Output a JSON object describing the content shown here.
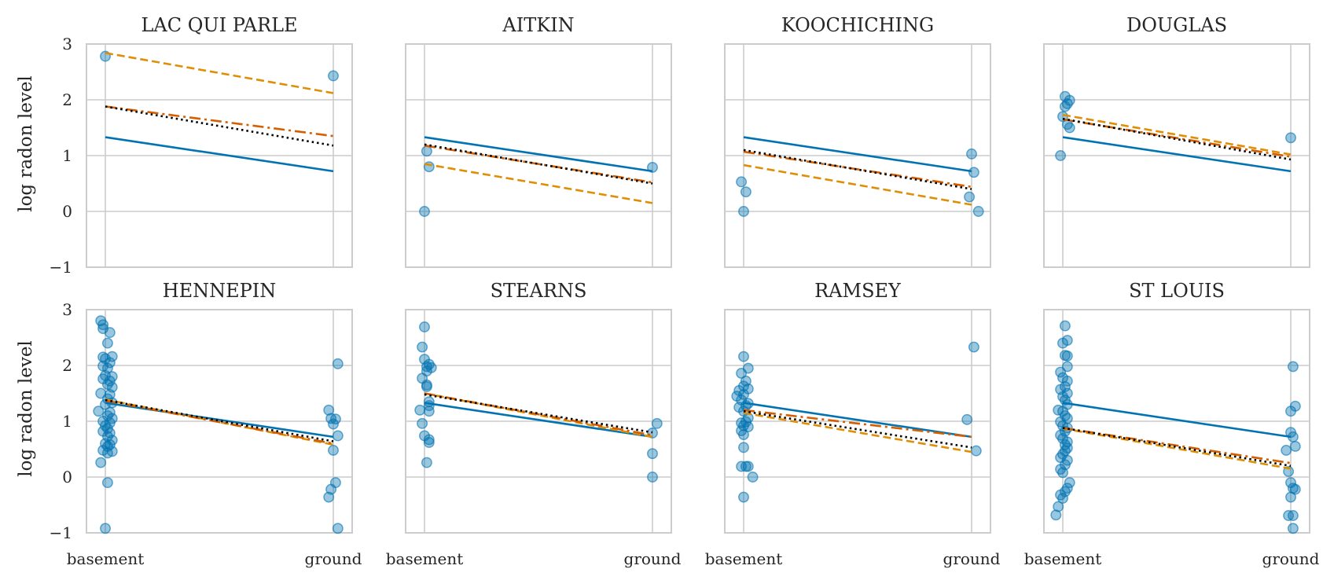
{
  "chart_data": {
    "type": "line",
    "ylabel": "log radon level",
    "ylim": [
      -1,
      3
    ],
    "yticks": [
      3,
      2,
      1,
      0,
      -1
    ],
    "ytick_labels": [
      "3",
      "2",
      "1",
      "0",
      "−1"
    ],
    "categories": [
      "basement",
      "ground"
    ],
    "grid": true,
    "colors": {
      "points": "#0173b2",
      "solid": "#0173b2",
      "dashed": "#de8f05",
      "dashdot": "#d55e00",
      "dotted": "#000000"
    },
    "panels": [
      {
        "title": "LAC QUI PARLE",
        "lines": {
          "solid": [
            1.33,
            0.72
          ],
          "dashed": [
            2.84,
            2.12
          ],
          "dashdot": [
            1.88,
            1.35
          ],
          "dotted": [
            1.88,
            1.18
          ]
        },
        "points": [
          [
            0,
            2.78
          ],
          [
            1,
            2.43
          ]
        ]
      },
      {
        "title": "AITKIN",
        "lines": {
          "solid": [
            1.33,
            0.72
          ],
          "dashed": [
            0.85,
            0.15
          ],
          "dashdot": [
            1.18,
            0.52
          ],
          "dotted": [
            1.2,
            0.5
          ]
        },
        "points": [
          [
            0,
            0.0
          ],
          [
            0.01,
            1.08
          ],
          [
            0.02,
            0.8
          ],
          [
            1,
            0.79
          ]
        ]
      },
      {
        "title": "KOOCHICHING",
        "lines": {
          "solid": [
            1.33,
            0.72
          ],
          "dashed": [
            0.83,
            0.12
          ],
          "dashdot": [
            1.07,
            0.44
          ],
          "dotted": [
            1.1,
            0.4
          ]
        },
        "points": [
          [
            -0.01,
            0.53
          ],
          [
            0.01,
            0.35
          ],
          [
            0.0,
            0.0
          ],
          [
            1.0,
            1.03
          ],
          [
            1.01,
            0.7
          ],
          [
            0.99,
            0.26
          ],
          [
            1.03,
            0.0
          ]
        ]
      },
      {
        "title": "DOUGLAS",
        "lines": {
          "solid": [
            1.33,
            0.72
          ],
          "dashed": [
            1.73,
            1.02
          ],
          "dashdot": [
            1.65,
            0.98
          ],
          "dotted": [
            1.66,
            0.93
          ]
        },
        "points": [
          [
            -0.01,
            1.0
          ],
          [
            0.0,
            1.7
          ],
          [
            0.01,
            2.06
          ],
          [
            0.02,
            1.93
          ],
          [
            0.03,
            1.99
          ],
          [
            0.01,
            1.88
          ],
          [
            0.02,
            1.56
          ],
          [
            0.03,
            1.5
          ],
          [
            1.0,
            1.32
          ]
        ]
      },
      {
        "title": "HENNEPIN",
        "lines": {
          "solid": [
            1.33,
            0.72
          ],
          "dashed": [
            1.39,
            0.58
          ],
          "dashdot": [
            1.37,
            0.6
          ],
          "dotted": [
            1.38,
            0.64
          ]
        },
        "points": [
          [
            -0.02,
            2.8
          ],
          [
            -0.01,
            2.73
          ],
          [
            -0.01,
            2.66
          ],
          [
            0.02,
            2.59
          ],
          [
            0.01,
            2.4
          ],
          [
            -0.01,
            2.15
          ],
          [
            0.0,
            2.12
          ],
          [
            0.03,
            2.16
          ],
          [
            0.02,
            2.05
          ],
          [
            -0.01,
            1.99
          ],
          [
            0.01,
            1.95
          ],
          [
            0.0,
            1.82
          ],
          [
            0.03,
            1.8
          ],
          [
            -0.01,
            1.76
          ],
          [
            0.02,
            1.72
          ],
          [
            0.01,
            1.66
          ],
          [
            0.03,
            1.61
          ],
          [
            -0.02,
            1.5
          ],
          [
            0.02,
            1.48
          ],
          [
            0.01,
            1.4
          ],
          [
            0.03,
            1.33
          ],
          [
            0.0,
            1.3
          ],
          [
            -0.03,
            1.18
          ],
          [
            0.02,
            1.16
          ],
          [
            0.01,
            1.1
          ],
          [
            0.03,
            1.05
          ],
          [
            -0.01,
            1.0
          ],
          [
            0.02,
            0.97
          ],
          [
            0.0,
            0.92
          ],
          [
            0.01,
            0.87
          ],
          [
            -0.01,
            0.82
          ],
          [
            0.02,
            0.79
          ],
          [
            0.01,
            0.73
          ],
          [
            0.03,
            0.66
          ],
          [
            0.0,
            0.6
          ],
          [
            0.02,
            0.58
          ],
          [
            0.01,
            0.55
          ],
          [
            -0.01,
            0.48
          ],
          [
            0.03,
            0.46
          ],
          [
            0.01,
            0.43
          ],
          [
            -0.02,
            0.26
          ],
          [
            0.01,
            -0.1
          ],
          [
            0.0,
            -0.92
          ],
          [
            0.98,
            1.2
          ],
          [
            1.02,
            2.03
          ],
          [
            0.99,
            1.05
          ],
          [
            1.01,
            1.04
          ],
          [
            1.0,
            0.95
          ],
          [
            1.02,
            0.74
          ],
          [
            1.0,
            0.48
          ],
          [
            1.01,
            -0.1
          ],
          [
            0.99,
            -0.22
          ],
          [
            0.98,
            -0.36
          ],
          [
            1.02,
            -0.92
          ]
        ]
      },
      {
        "title": "STEARNS",
        "lines": {
          "solid": [
            1.33,
            0.72
          ],
          "dashed": [
            1.5,
            0.72
          ],
          "dashdot": [
            1.5,
            0.75
          ],
          "dotted": [
            1.48,
            0.8
          ]
        },
        "points": [
          [
            0.0,
            2.69
          ],
          [
            -0.01,
            2.33
          ],
          [
            0.0,
            2.11
          ],
          [
            0.02,
            2.02
          ],
          [
            0.01,
            1.98
          ],
          [
            0.03,
            1.96
          ],
          [
            0.01,
            1.9
          ],
          [
            -0.01,
            1.77
          ],
          [
            0.01,
            1.65
          ],
          [
            0.01,
            1.62
          ],
          [
            0.02,
            1.35
          ],
          [
            0.02,
            1.28
          ],
          [
            -0.02,
            1.2
          ],
          [
            0.02,
            1.18
          ],
          [
            -0.01,
            0.96
          ],
          [
            0.0,
            0.74
          ],
          [
            0.02,
            0.67
          ],
          [
            0.02,
            0.62
          ],
          [
            0.01,
            0.26
          ],
          [
            1.02,
            0.96
          ],
          [
            1.0,
            0.79
          ],
          [
            1.0,
            0.42
          ],
          [
            1.0,
            0.0
          ]
        ]
      },
      {
        "title": "RAMSEY",
        "lines": {
          "solid": [
            1.33,
            0.72
          ],
          "dashed": [
            1.15,
            0.45
          ],
          "dashdot": [
            1.2,
            0.72
          ],
          "dotted": [
            1.18,
            0.53
          ]
        },
        "points": [
          [
            -0.03,
            1.45
          ],
          [
            0.0,
            2.16
          ],
          [
            0.02,
            1.95
          ],
          [
            -0.01,
            1.86
          ],
          [
            0.01,
            1.72
          ],
          [
            0.0,
            1.63
          ],
          [
            0.02,
            1.58
          ],
          [
            -0.02,
            1.55
          ],
          [
            0.0,
            1.48
          ],
          [
            -0.01,
            1.38
          ],
          [
            0.02,
            1.32
          ],
          [
            0.01,
            1.28
          ],
          [
            -0.02,
            1.25
          ],
          [
            0.0,
            1.18
          ],
          [
            0.02,
            1.06
          ],
          [
            0.01,
            0.99
          ],
          [
            -0.01,
            0.97
          ],
          [
            0.0,
            0.92
          ],
          [
            0.02,
            0.9
          ],
          [
            -0.01,
            0.83
          ],
          [
            0.0,
            0.76
          ],
          [
            0.0,
            0.53
          ],
          [
            -0.01,
            0.19
          ],
          [
            0.01,
            0.19
          ],
          [
            0.02,
            0.19
          ],
          [
            0.04,
            0.0
          ],
          [
            0.0,
            -0.36
          ],
          [
            0.98,
            1.03
          ],
          [
            1.01,
            2.33
          ],
          [
            1.02,
            0.47
          ]
        ]
      },
      {
        "title": "ST LOUIS",
        "lines": {
          "solid": [
            1.33,
            0.72
          ],
          "dashed": [
            0.87,
            0.15
          ],
          "dashdot": [
            0.88,
            0.25
          ],
          "dotted": [
            0.88,
            0.2
          ]
        },
        "points": [
          [
            0.01,
            2.71
          ],
          [
            0.02,
            2.45
          ],
          [
            0.0,
            2.4
          ],
          [
            0.01,
            2.18
          ],
          [
            0.02,
            2.17
          ],
          [
            0.02,
            1.98
          ],
          [
            -0.01,
            1.88
          ],
          [
            0.0,
            1.78
          ],
          [
            0.02,
            1.72
          ],
          [
            0.01,
            1.62
          ],
          [
            -0.01,
            1.57
          ],
          [
            0.02,
            1.5
          ],
          [
            0.0,
            1.44
          ],
          [
            0.01,
            1.38
          ],
          [
            0.02,
            1.3
          ],
          [
            -0.02,
            1.2
          ],
          [
            0.0,
            1.18
          ],
          [
            0.01,
            1.1
          ],
          [
            0.02,
            1.05
          ],
          [
            -0.01,
            0.99
          ],
          [
            0.0,
            0.92
          ],
          [
            0.02,
            0.88
          ],
          [
            0.01,
            0.82
          ],
          [
            -0.01,
            0.75
          ],
          [
            0.0,
            0.69
          ],
          [
            0.02,
            0.63
          ],
          [
            0.01,
            0.58
          ],
          [
            0.02,
            0.52
          ],
          [
            0.01,
            0.47
          ],
          [
            0.0,
            0.41
          ],
          [
            -0.01,
            0.35
          ],
          [
            0.02,
            0.3
          ],
          [
            0.01,
            0.22
          ],
          [
            -0.01,
            0.14
          ],
          [
            0.0,
            0.08
          ],
          [
            0.03,
            -0.1
          ],
          [
            0.02,
            -0.2
          ],
          [
            0.01,
            -0.26
          ],
          [
            -0.01,
            -0.32
          ],
          [
            0.0,
            -0.38
          ],
          [
            -0.02,
            -0.53
          ],
          [
            -0.03,
            -0.68
          ],
          [
            0.98,
            0.48
          ],
          [
            1.0,
            0.8
          ],
          [
            1.01,
            1.98
          ],
          [
            1.02,
            1.27
          ],
          [
            1.0,
            1.18
          ],
          [
            1.01,
            0.72
          ],
          [
            1.02,
            0.55
          ],
          [
            0.99,
            0.1
          ],
          [
            1.0,
            -0.1
          ],
          [
            1.01,
            -0.2
          ],
          [
            1.02,
            -0.22
          ],
          [
            1.0,
            -0.36
          ],
          [
            1.01,
            -0.69
          ],
          [
            0.99,
            -0.69
          ],
          [
            1.01,
            -0.92
          ]
        ]
      }
    ]
  }
}
